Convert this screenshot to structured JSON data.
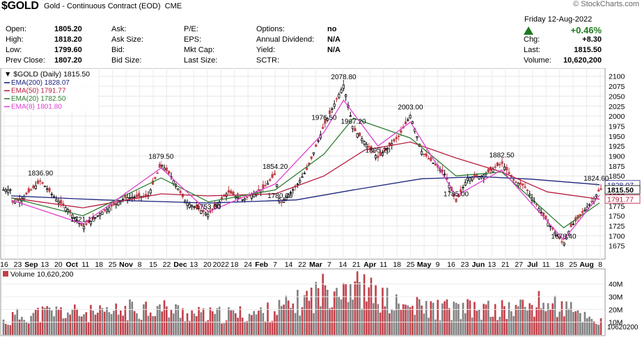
{
  "header": {
    "symbol": "$GOLD",
    "description": "Gold - Continuous Contract (EOD)",
    "exchange": "CME",
    "logo": "© StockCharts.com"
  },
  "quote": {
    "date": "Friday  12-Aug-2022",
    "pct_change": "+0.46%",
    "rows": [
      {
        "l1": "Open:",
        "v1": "1805.20",
        "l2": "Ask:",
        "v2": "",
        "l3": "P/E:",
        "v3": "",
        "l4": "Options:",
        "v4": "no",
        "l5": "",
        "v5": ""
      },
      {
        "l1": "High:",
        "v1": "1818.20",
        "l2": "Ask Size:",
        "v2": "",
        "l3": "EPS:",
        "v3": "",
        "l4": "Annual Dividend:",
        "v4": "N/A",
        "l5": "Chg:",
        "v5": "+8.30"
      },
      {
        "l1": "Low:",
        "v1": "1799.60",
        "l2": "Bid:",
        "v2": "",
        "l3": "Mkt Cap:",
        "v3": "",
        "l4": "Yield:",
        "v4": "N/A",
        "l5": "Last:",
        "v5": "1815.50"
      },
      {
        "l1": "Prev Close:",
        "v1": "1807.20",
        "l2": "Bid Size:",
        "v2": "",
        "l3": "Last Size:",
        "v3": "",
        "l4": "SCTR:",
        "v4": "",
        "l5": "Volume:",
        "v5": "10,620,200"
      }
    ]
  },
  "chart_data": [
    {
      "type": "line",
      "title": "$GOLD (Daily) 1815.50",
      "ylim": [
        1650,
        2110
      ],
      "y_ticks": [
        1675,
        1700,
        1725,
        1750,
        1775,
        1800,
        1825,
        1850,
        1875,
        1900,
        1925,
        1950,
        1975,
        2000,
        2025,
        2050,
        2075,
        2100
      ],
      "x_tick_labels": [
        "16",
        "23",
        "Sep",
        "13",
        "20",
        "Oct",
        "11",
        "18",
        "25",
        "Nov",
        "8",
        "15",
        "22",
        "Dec",
        "13",
        "20",
        "2022",
        "18",
        "24",
        "Feb",
        "7",
        "14",
        "22",
        "Mar",
        "7",
        "14",
        "21",
        "Apr",
        "11",
        "18",
        "25",
        "May",
        "9",
        "16",
        "23",
        "Jun",
        "13",
        "21",
        "27",
        "Jul",
        "11",
        "18",
        "25",
        "Aug",
        "8"
      ],
      "legend": [
        {
          "name": "EMA(200) 1828.07",
          "color": "#1a237e"
        },
        {
          "name": "EMA(50) 1791.77",
          "color": "#b71c3c"
        },
        {
          "name": "EMA(20) 1782.50",
          "color": "#2e7d32"
        },
        {
          "name": "EMA(8) 1801.80",
          "color": "#e040d0"
        }
      ],
      "price_last": "1815.50",
      "right_labels": [
        {
          "text": "1828.07",
          "value": 1828.07,
          "color": "#1a237e"
        },
        {
          "text": "1815.50",
          "value": 1815.5,
          "color": "#000000"
        },
        {
          "text": "1791.77",
          "value": 1791.77,
          "color": "#b71c3c"
        }
      ],
      "annotations": [
        {
          "text": "1836.90",
          "x": "2021-09-03",
          "y": 1836.9
        },
        {
          "text": "1721.10",
          "x": "2021-09-29",
          "y": 1721.1
        },
        {
          "text": "1879.50",
          "x": "2021-11-16",
          "y": 1879.5
        },
        {
          "text": "1753.00",
          "x": "2021-12-15",
          "y": 1753.0
        },
        {
          "text": "1854.20",
          "x": "2022-01-25",
          "y": 1854.2
        },
        {
          "text": "1780.60",
          "x": "2022-01-28",
          "y": 1780.6
        },
        {
          "text": "1976.50",
          "x": "2022-02-24",
          "y": 1976.5
        },
        {
          "text": "2078.80",
          "x": "2022-03-08",
          "y": 2078.8
        },
        {
          "text": "1967.20",
          "x": "2022-03-14",
          "y": 1967.2
        },
        {
          "text": "1895.20",
          "x": "2022-03-29",
          "y": 1895.2
        },
        {
          "text": "2003.00",
          "x": "2022-04-18",
          "y": 2003.0
        },
        {
          "text": "1785.00",
          "x": "2022-05-16",
          "y": 1785.0
        },
        {
          "text": "1882.50",
          "x": "2022-06-13",
          "y": 1882.5
        },
        {
          "text": "1678.40",
          "x": "2022-07-21",
          "y": 1678.4
        },
        {
          "text": "1824.60",
          "x": "2022-08-10",
          "y": 1824.6
        }
      ],
      "series": [
        {
          "name": "Price",
          "color": "#000000",
          "x": [
            "2021-08-16",
            "2021-08-23",
            "2021-09-03",
            "2021-09-13",
            "2021-09-20",
            "2021-09-29",
            "2021-10-11",
            "2021-10-25",
            "2021-11-08",
            "2021-11-16",
            "2021-11-22",
            "2021-12-01",
            "2021-12-15",
            "2021-12-27",
            "2022-01-05",
            "2022-01-18",
            "2022-01-25",
            "2022-01-28",
            "2022-02-07",
            "2022-02-14",
            "2022-02-24",
            "2022-03-08",
            "2022-03-14",
            "2022-03-21",
            "2022-03-29",
            "2022-04-11",
            "2022-04-18",
            "2022-04-25",
            "2022-05-09",
            "2022-05-16",
            "2022-05-23",
            "2022-06-01",
            "2022-06-13",
            "2022-06-21",
            "2022-06-27",
            "2022-07-11",
            "2022-07-21",
            "2022-07-25",
            "2022-08-08",
            "2022-08-12"
          ],
          "y": [
            1782,
            1795,
            1836.9,
            1790,
            1765,
            1721.1,
            1760,
            1795,
            1800,
            1879.5,
            1850,
            1785,
            1753,
            1810,
            1790,
            1820,
            1854.2,
            1780.6,
            1825,
            1870,
            1976.5,
            2078.8,
            1967.2,
            1935,
            1895.2,
            1950,
            2003,
            1910,
            1855,
            1785,
            1845,
            1850,
            1882.5,
            1835,
            1825,
            1735,
            1678.4,
            1720,
            1790,
            1815.5
          ]
        },
        {
          "name": "EMA(200)",
          "color": "#1a237e",
          "x": [
            "2021-08-16",
            "2021-10-11",
            "2021-12-15",
            "2022-02-07",
            "2022-03-14",
            "2022-04-25",
            "2022-06-01",
            "2022-07-01",
            "2022-08-12"
          ],
          "y": [
            1800,
            1790,
            1782,
            1790,
            1815,
            1843,
            1848,
            1842,
            1828.07
          ]
        },
        {
          "name": "EMA(50)",
          "color": "#b71c3c",
          "x": [
            "2021-08-16",
            "2021-09-29",
            "2021-11-16",
            "2021-12-15",
            "2022-01-25",
            "2022-02-24",
            "2022-03-21",
            "2022-04-18",
            "2022-05-16",
            "2022-06-13",
            "2022-07-11",
            "2022-08-12"
          ],
          "y": [
            1795,
            1770,
            1805,
            1800,
            1805,
            1850,
            1915,
            1935,
            1895,
            1860,
            1810,
            1791.77
          ]
        },
        {
          "name": "EMA(20)",
          "color": "#2e7d32",
          "x": [
            "2021-08-16",
            "2021-09-29",
            "2021-11-16",
            "2021-12-15",
            "2022-01-25",
            "2022-02-24",
            "2022-03-14",
            "2022-04-18",
            "2022-05-16",
            "2022-06-13",
            "2022-07-21",
            "2022-08-12"
          ],
          "y": [
            1795,
            1750,
            1845,
            1785,
            1815,
            1905,
            1995,
            1945,
            1850,
            1860,
            1720,
            1782.5
          ]
        },
        {
          "name": "EMA(8)",
          "color": "#e040d0",
          "x": [
            "2021-08-16",
            "2021-09-29",
            "2021-11-16",
            "2021-12-15",
            "2022-01-25",
            "2022-02-24",
            "2022-03-08",
            "2022-03-29",
            "2022-04-18",
            "2022-05-16",
            "2022-06-13",
            "2022-07-21",
            "2022-08-12"
          ],
          "y": [
            1790,
            1730,
            1870,
            1760,
            1830,
            1960,
            2040,
            1925,
            1985,
            1800,
            1865,
            1690,
            1801.8
          ]
        }
      ]
    },
    {
      "type": "bar",
      "title": "Volume 10,620,200",
      "ylim": [
        0,
        48000000
      ],
      "y_tick_labels": [
        "40M",
        "30M",
        "20M",
        "10M"
      ],
      "y_tick_values": [
        40000000,
        30000000,
        20000000,
        10000000
      ],
      "last_value_label": "10620200",
      "colors": {
        "up": "#808080",
        "down": "#c0404a"
      },
      "series": [
        {
          "name": "Volume",
          "x": [
            "2021-08-16",
            "2021-09-13",
            "2021-10-11",
            "2021-11-08",
            "2021-12-13",
            "2022-01-18",
            "2022-02-07",
            "2022-03-07",
            "2022-04-11",
            "2022-05-09",
            "2022-06-13",
            "2022-07-11",
            "2022-08-12"
          ],
          "values": [
            14000000,
            18000000,
            16000000,
            22000000,
            15000000,
            17000000,
            24000000,
            42000000,
            22000000,
            20000000,
            19000000,
            25000000,
            10620200
          ]
        }
      ]
    }
  ]
}
